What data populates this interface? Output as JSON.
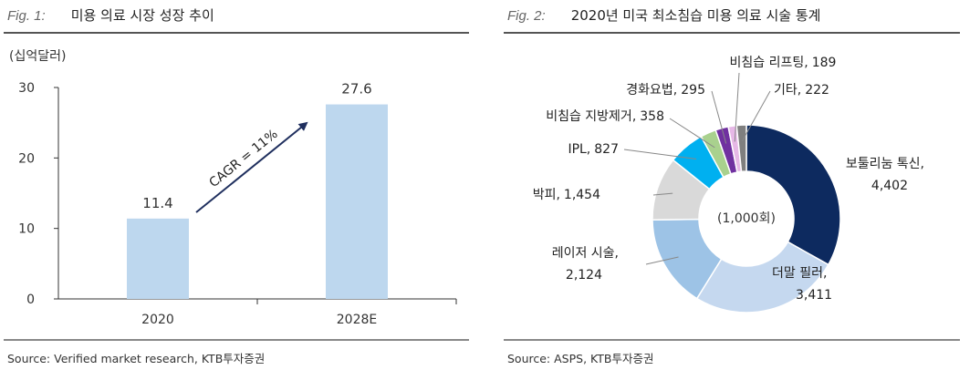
{
  "fig1": {
    "label": "Fig. 1:",
    "title": "미용 의료 시장 성장 추이",
    "unit": "(십억달러)",
    "source": "Source: Verified market research, KTB투자증권",
    "cagr_label": "CAGR = 11%"
  },
  "fig2": {
    "label": "Fig. 2:",
    "title": "2020년 미국 최소침습 미용 의료 시술 통계",
    "center_label": "(1,000회)",
    "source": "Source: ASPS, KTB투자증권"
  },
  "colors": {
    "bar": "#bdd7ee",
    "arrow": "#1f2f5e",
    "pie": [
      "#0d2a5f",
      "#c5d8ef",
      "#9dc3e6",
      "#d9d9d9",
      "#00b0f0",
      "#a9d18e",
      "#7030a0",
      "#e6b8e6",
      "#7f7f7f"
    ]
  },
  "chart_data": [
    {
      "type": "bar",
      "categories": [
        "2020",
        "2028E"
      ],
      "values": [
        11.4,
        27.6
      ],
      "data_labels": [
        "11.4",
        "27.6"
      ],
      "title": "미용 의료 시장 성장 추이",
      "ylabel": "(십억달러)",
      "ylim": [
        0,
        30
      ],
      "yticks": [
        "0",
        "10",
        "20",
        "30"
      ],
      "grid": false
    },
    {
      "type": "pie",
      "donut": true,
      "title": "2020년 미국 최소침습 미용 의료 시술 통계",
      "slices": [
        {
          "label": "보툴리눔 톡신,",
          "value_text": "4,402",
          "value": 4402
        },
        {
          "label": "더말 필러,",
          "value_text": "3,411",
          "value": 3411
        },
        {
          "label": "레이저 시술,",
          "value_text": "2,124",
          "value": 2124
        },
        {
          "label": "박피,",
          "value_text": "1,454",
          "value": 1454
        },
        {
          "label": "IPL,",
          "value_text": "827",
          "value": 827
        },
        {
          "label": "비침습 지방제거,",
          "value_text": "358",
          "value": 358
        },
        {
          "label": "경화요법,",
          "value_text": "295",
          "value": 295
        },
        {
          "label": "비침습 리프팅,",
          "value_text": "189",
          "value": 189
        },
        {
          "label": "기타,",
          "value_text": "222",
          "value": 222
        }
      ]
    }
  ]
}
